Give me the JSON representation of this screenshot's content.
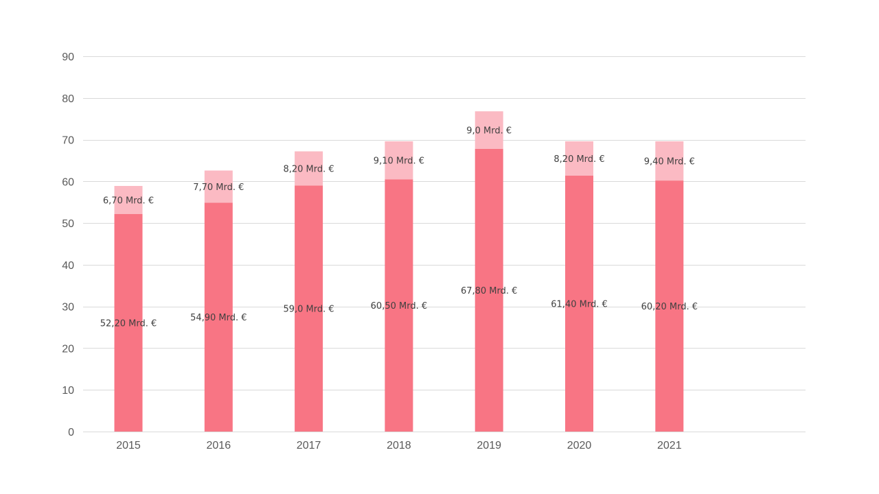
{
  "chart_data": {
    "type": "bar",
    "stacked": true,
    "categories": [
      "2015",
      "2016",
      "2017",
      "2018",
      "2019",
      "2020",
      "2021"
    ],
    "series": [
      {
        "values": [
          52.2,
          54.9,
          59.0,
          60.5,
          67.8,
          61.4,
          60.2
        ],
        "labels": [
          "52,20 Mrd. €",
          "54,90 Mrd. €",
          "59,0 Mrd. €",
          "60,50 Mrd. €",
          "67,80 Mrd. €",
          "61,40 Mrd. €",
          "60,20 Mrd. €"
        ],
        "color": "#f87584"
      },
      {
        "values": [
          6.7,
          7.7,
          8.2,
          9.1,
          9.0,
          8.2,
          9.4
        ],
        "labels": [
          "6,70 Mrd. €",
          "7,70 Mrd. €",
          "8,20 Mrd. €",
          "9,10 Mrd. €",
          "9,0 Mrd. €",
          "8,20 Mrd. €",
          "9,40 Mrd. €"
        ],
        "color": "#fbbac3"
      }
    ],
    "ylim": [
      0,
      90
    ],
    "yticks": [
      "0",
      "10",
      "20",
      "30",
      "40",
      "50",
      "60",
      "70",
      "80",
      "90"
    ],
    "grid": true,
    "legend": "none"
  }
}
